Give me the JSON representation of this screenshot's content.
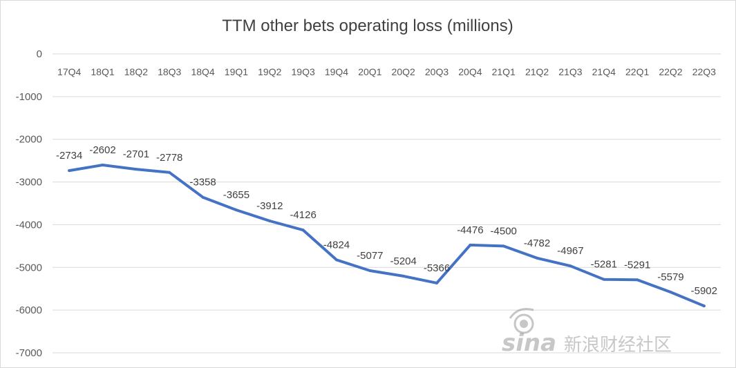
{
  "chart_data": {
    "type": "line",
    "title": "TTM other bets operating loss (millions)",
    "xlabel": "",
    "ylabel": "",
    "categories": [
      "17Q4",
      "18Q1",
      "18Q2",
      "18Q3",
      "18Q4",
      "19Q1",
      "19Q2",
      "19Q3",
      "19Q4",
      "20Q1",
      "20Q2",
      "20Q3",
      "20Q4",
      "21Q1",
      "21Q2",
      "21Q3",
      "21Q4",
      "22Q1",
      "22Q2",
      "22Q3"
    ],
    "series": [
      {
        "values": [
          -2734,
          -2602,
          -2701,
          -2778,
          -3358,
          -3655,
          -3912,
          -4126,
          -4824,
          -5077,
          -5204,
          -5366,
          -4476,
          -4500,
          -4782,
          -4967,
          -5281,
          -5291,
          -5579,
          -5902
        ],
        "color": "#4472c4"
      }
    ],
    "ylim": [
      -7000,
      0
    ],
    "yticks": [
      0,
      -1000,
      -2000,
      -3000,
      -4000,
      -5000,
      -6000,
      -7000
    ],
    "grid": true,
    "legend": "none",
    "data_labels": true,
    "x_axis_labels_position": "top"
  },
  "watermark": {
    "logo_text": "sina",
    "text": "新浪财经社区"
  }
}
